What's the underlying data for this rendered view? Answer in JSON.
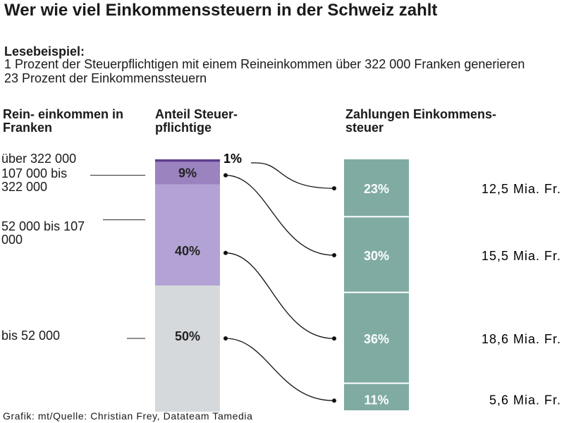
{
  "title": "Wer wie viel Einkommenssteuern in der Schweiz zahlt",
  "reading_example": {
    "heading": "Lesebeispiel:",
    "text": "1 Prozent der Steuerpflichtigen mit einem Reineinkommen über 322 000 Franken generieren 23 Prozent der Einkommenssteuern"
  },
  "headers": {
    "income": "Rein- einkommen in Franken",
    "taxpayers": "Anteil Steuer- pflichtige",
    "payments": "Zahlungen Einkommens- steuer"
  },
  "footer": "Grafik: mt/Quelle: Christian Frey, Datateam Tamedia",
  "colors": {
    "top_bracket": "#5e3d8c",
    "upper_bracket": "#9a83bf",
    "middle_bracket": "#b3a3d5",
    "lower_bracket": "#d6d9dc",
    "payments_bar": "#7faba3",
    "connector": "#111111"
  },
  "chart_data": {
    "type": "bar",
    "categories": [
      "über 322 000",
      "107 000 bis 322 000",
      "52 000 bis 107 000",
      "bis 52 000"
    ],
    "series": [
      {
        "name": "Anteil Steuerpflichtige",
        "values": [
          1,
          9,
          40,
          50
        ],
        "labels": [
          "1%",
          "9%",
          "40%",
          "50%"
        ]
      },
      {
        "name": "Zahlungen Einkommenssteuer",
        "values": [
          23,
          30,
          36,
          11
        ],
        "labels": [
          "23%",
          "30%",
          "36%",
          "11%"
        ]
      }
    ],
    "amounts": [
      "12,5 Mia. Fr.",
      "15,5 Mia. Fr.",
      "18,6 Mia. Fr.",
      "5,6 Mia. Fr."
    ],
    "unit": "%"
  }
}
